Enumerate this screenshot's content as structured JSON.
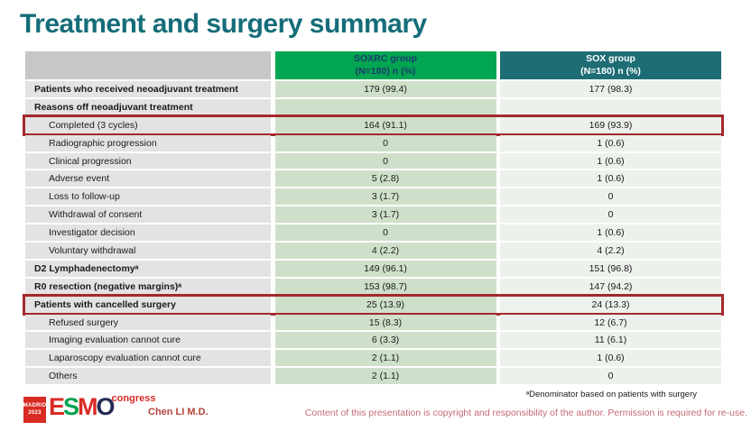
{
  "slide": {
    "title": "Treatment and surgery summary",
    "footnote": "ᵃDenominator based on patients with surgery",
    "author": "Chen LI M.D.",
    "copyright": "Content of this presentation is copyright and responsibility of the author. Permission is required for re-use.",
    "logo": {
      "badge_line1": "MADRID",
      "badge_line2": "2023",
      "letters": [
        "E",
        "S",
        "M",
        "O"
      ],
      "congress": "congress"
    }
  },
  "colors": {
    "title_teal": "#156d79",
    "accent_green": "#02a551",
    "accent_teal": "#1e6d75",
    "highlight_red": "#a2292c",
    "green_cell": "#cfe0ca",
    "light_cell": "#edf1ec",
    "label_gray": "#e3e3e3"
  },
  "table": {
    "columns": [
      {
        "label": "SOXRC group",
        "sublabel": "(N=180)  n (%)"
      },
      {
        "label": "SOX group",
        "sublabel": "(N=180)  n (%)"
      }
    ],
    "rows": [
      {
        "label": "Patients who received neoadjuvant treatment",
        "soxrc": "179 (99.4)",
        "sox": "177 (98.3)",
        "bold": true
      },
      {
        "label": "Reasons off neoadjuvant treatment",
        "soxrc": "",
        "sox": "",
        "bold": true
      },
      {
        "label": "Completed (3 cycles)",
        "soxrc": "164 (91.1)",
        "sox": "169 (93.9)",
        "indent": true,
        "highlight": true
      },
      {
        "label": "Radiographic progression",
        "soxrc": "0",
        "sox": "1 (0.6)",
        "indent": true
      },
      {
        "label": "Clinical progression",
        "soxrc": "0",
        "sox": "1 (0.6)",
        "indent": true
      },
      {
        "label": "Adverse event",
        "soxrc": "5 (2.8)",
        "sox": "1 (0.6)",
        "indent": true
      },
      {
        "label": "Loss to follow-up",
        "soxrc": "3 (1.7)",
        "sox": "0",
        "indent": true
      },
      {
        "label": "Withdrawal of consent",
        "soxrc": "3 (1.7)",
        "sox": "0",
        "indent": true
      },
      {
        "label": "Investigator decision",
        "soxrc": "0",
        "sox": "1 (0.6)",
        "indent": true
      },
      {
        "label": "Voluntary withdrawal",
        "soxrc": "4 (2.2)",
        "sox": "4 (2.2)",
        "indent": true
      },
      {
        "label": "D2 Lymphadenectomyᵃ",
        "soxrc": "149 (96.1)",
        "sox": "151 (96.8)",
        "bold": true
      },
      {
        "label": "R0 resection (negative margins)ᵃ",
        "soxrc": "153 (98.7)",
        "sox": "147 (94.2)",
        "bold": true
      },
      {
        "label": "Patients with cancelled surgery",
        "soxrc": "25 (13.9)",
        "sox": "24 (13.3)",
        "bold": true,
        "highlight": true
      },
      {
        "label": "Refused surgery",
        "soxrc": "15 (8.3)",
        "sox": "12 (6.7)",
        "indent": true
      },
      {
        "label": "Imaging evaluation cannot cure",
        "soxrc": "6 (3.3)",
        "sox": "11 (6.1)",
        "indent": true
      },
      {
        "label": "Laparoscopy evaluation cannot cure",
        "soxrc": "2 (1.1)",
        "sox": "1 (0.6)",
        "indent": true
      },
      {
        "label": "Others",
        "soxrc": "2 (1.1)",
        "sox": "0",
        "indent": true
      }
    ]
  }
}
